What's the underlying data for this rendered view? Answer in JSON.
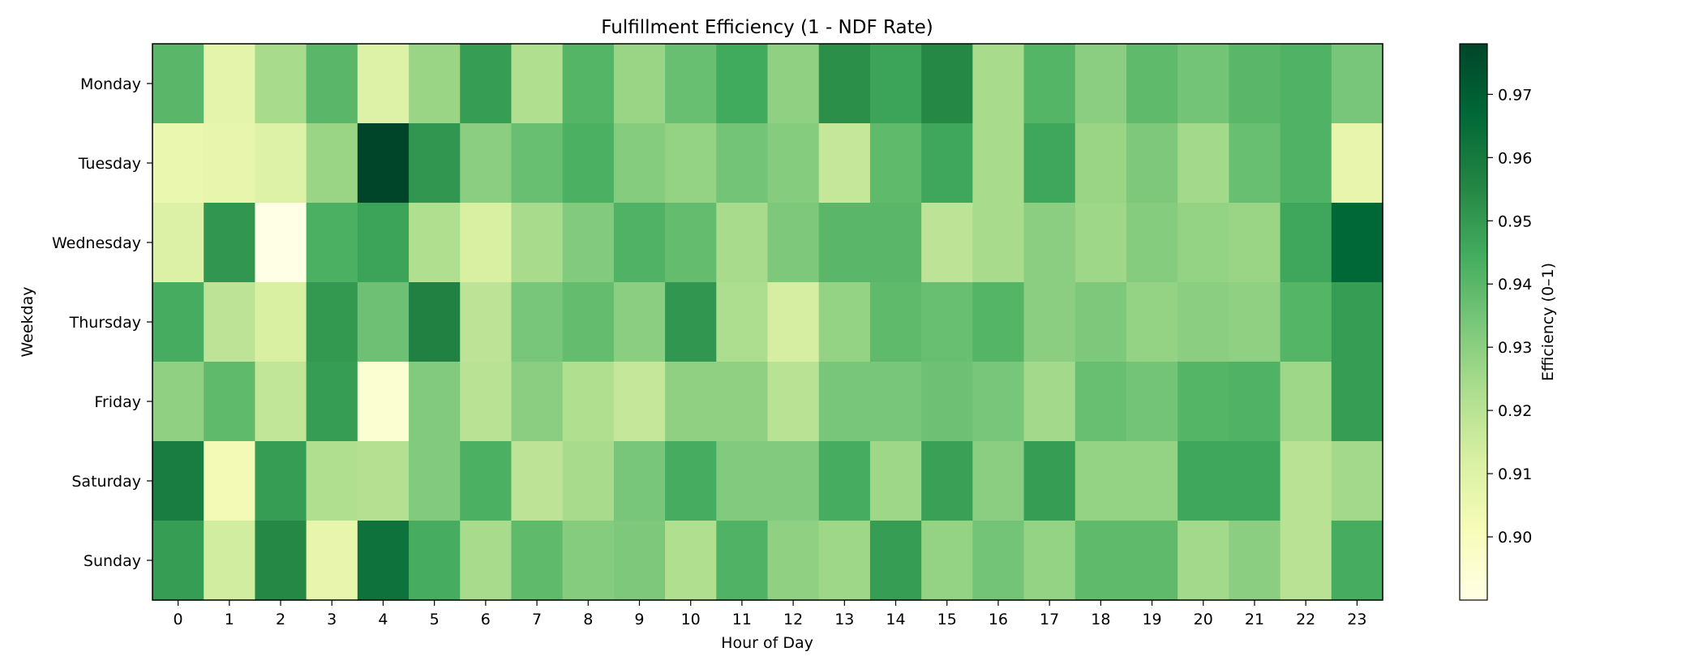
{
  "chart_data": {
    "type": "heatmap",
    "title": "Fulfillment Efficiency (1 - NDF Rate)",
    "xlabel": "Hour of Day",
    "ylabel": "Weekday",
    "x_categories": [
      "0",
      "1",
      "2",
      "3",
      "4",
      "5",
      "6",
      "7",
      "8",
      "9",
      "10",
      "11",
      "12",
      "13",
      "14",
      "15",
      "16",
      "17",
      "18",
      "19",
      "20",
      "21",
      "22",
      "23"
    ],
    "y_categories": [
      "Monday",
      "Tuesday",
      "Wednesday",
      "Thursday",
      "Friday",
      "Saturday",
      "Sunday"
    ],
    "values": [
      [
        0.94,
        0.908,
        0.924,
        0.94,
        0.91,
        0.927,
        0.949,
        0.922,
        0.941,
        0.927,
        0.937,
        0.945,
        0.929,
        0.953,
        0.947,
        0.955,
        0.924,
        0.941,
        0.93,
        0.939,
        0.935,
        0.94,
        0.942,
        0.934
      ],
      [
        0.906,
        0.907,
        0.91,
        0.927,
        0.978,
        0.951,
        0.93,
        0.937,
        0.943,
        0.931,
        0.928,
        0.935,
        0.931,
        0.917,
        0.939,
        0.946,
        0.924,
        0.946,
        0.927,
        0.933,
        0.925,
        0.937,
        0.942,
        0.907
      ],
      [
        0.911,
        0.951,
        0.89,
        0.943,
        0.947,
        0.922,
        0.912,
        0.924,
        0.932,
        0.942,
        0.938,
        0.924,
        0.933,
        0.94,
        0.94,
        0.919,
        0.924,
        0.93,
        0.926,
        0.931,
        0.928,
        0.927,
        0.946,
        0.967
      ],
      [
        0.944,
        0.919,
        0.912,
        0.95,
        0.936,
        0.957,
        0.919,
        0.934,
        0.938,
        0.93,
        0.951,
        0.923,
        0.913,
        0.928,
        0.939,
        0.937,
        0.941,
        0.93,
        0.933,
        0.928,
        0.93,
        0.929,
        0.941,
        0.949
      ],
      [
        0.929,
        0.939,
        0.918,
        0.949,
        0.895,
        0.932,
        0.92,
        0.93,
        0.922,
        0.917,
        0.929,
        0.929,
        0.92,
        0.934,
        0.934,
        0.936,
        0.934,
        0.925,
        0.937,
        0.935,
        0.941,
        0.942,
        0.926,
        0.949
      ],
      [
        0.959,
        0.903,
        0.949,
        0.922,
        0.921,
        0.932,
        0.943,
        0.919,
        0.924,
        0.934,
        0.944,
        0.932,
        0.932,
        0.944,
        0.926,
        0.948,
        0.93,
        0.949,
        0.928,
        0.928,
        0.946,
        0.946,
        0.92,
        0.925
      ],
      [
        0.949,
        0.914,
        0.955,
        0.907,
        0.963,
        0.944,
        0.924,
        0.939,
        0.931,
        0.933,
        0.922,
        0.942,
        0.929,
        0.926,
        0.949,
        0.928,
        0.935,
        0.928,
        0.939,
        0.939,
        0.925,
        0.93,
        0.92,
        0.944
      ]
    ],
    "vmin": 0.89,
    "vmax": 0.978,
    "colormap": "YlGn",
    "colorbar": {
      "label": "Efficiency (0–1)",
      "ticks": [
        "0.90",
        "0.91",
        "0.92",
        "0.93",
        "0.94",
        "0.95",
        "0.96",
        "0.97"
      ]
    },
    "grid": false,
    "legend": "none"
  }
}
